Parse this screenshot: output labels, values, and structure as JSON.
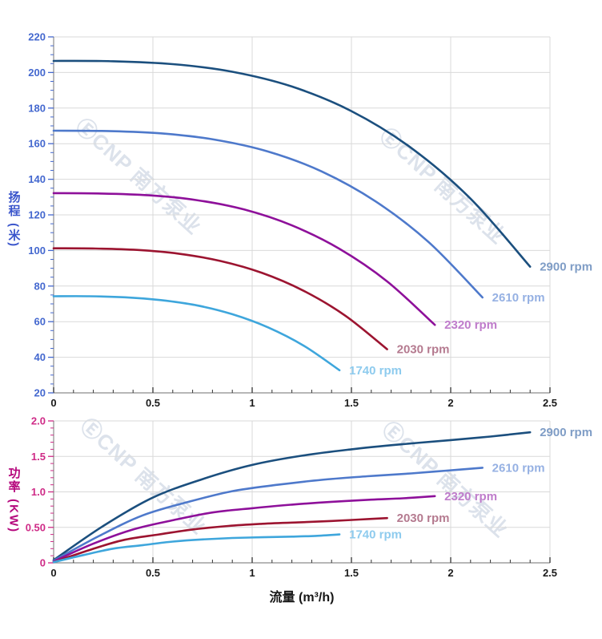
{
  "figure": {
    "watermark_text": "ⒺCNP 南方泵业",
    "background_color": "#ffffff",
    "grid_color": "#d9d9d9",
    "axis_line_color": "#8c8c8c",
    "x_tick_color": "#333333",
    "x_label_color": "#1a1a1a"
  },
  "chart_data": [
    {
      "id": "head-curve",
      "type": "line",
      "title": "",
      "xlabel": "",
      "ylabel": "扬程 (米)",
      "xlim": [
        0,
        2.5
      ],
      "ylim": [
        20,
        220
      ],
      "grid": true,
      "axis_color": "#4468cf",
      "title_color": "#3a55cb",
      "x_ticks": {
        "values": [
          0,
          0.5,
          1,
          1.5,
          2,
          2.5
        ],
        "labels": [
          "0",
          "0.5",
          "1",
          "1.5",
          "2",
          "2.5"
        ],
        "minor_step": 0.1
      },
      "y_ticks": {
        "values": [
          20,
          40,
          60,
          80,
          100,
          120,
          140,
          160,
          180,
          200,
          220
        ],
        "labels": [
          "20",
          "40",
          "60",
          "80",
          "100",
          "120",
          "140",
          "160",
          "180",
          "200",
          "220"
        ],
        "minor_step": 5
      },
      "series": [
        {
          "name": "2900 rpm",
          "color": "#1b4f7e",
          "label_color": "#7f9dc6",
          "points": [
            [
              0,
              206.5
            ],
            [
              0.3,
              206.3
            ],
            [
              0.6,
              204.7
            ],
            [
              0.9,
              200.4
            ],
            [
              1.2,
              192.1
            ],
            [
              1.5,
              178.3
            ],
            [
              1.8,
              157.7
            ],
            [
              2.1,
              129.1
            ],
            [
              2.4,
              90.9
            ]
          ]
        },
        {
          "name": "2610 rpm",
          "color": "#4e79cb",
          "label_color": "#96b1e3",
          "points": [
            [
              0,
              167.3
            ],
            [
              0.27,
              167.1
            ],
            [
              0.54,
              165.8
            ],
            [
              0.81,
              162.3
            ],
            [
              1.08,
              155.6
            ],
            [
              1.35,
              144.4
            ],
            [
              1.62,
              127.7
            ],
            [
              1.89,
              104.6
            ],
            [
              2.16,
              73.6
            ]
          ]
        },
        {
          "name": "2320 rpm",
          "color": "#8e109a",
          "label_color": "#bf7ccb",
          "points": [
            [
              0,
              132.2
            ],
            [
              0.24,
              132.0
            ],
            [
              0.48,
              131.0
            ],
            [
              0.72,
              128.3
            ],
            [
              0.96,
              123.0
            ],
            [
              1.2,
              114.1
            ],
            [
              1.44,
              100.9
            ],
            [
              1.68,
              82.6
            ],
            [
              1.92,
              58.2
            ]
          ]
        },
        {
          "name": "2030 rpm",
          "color": "#9c1430",
          "label_color": "#b57b90",
          "points": [
            [
              0,
              101.2
            ],
            [
              0.21,
              101.1
            ],
            [
              0.42,
              100.3
            ],
            [
              0.63,
              98.2
            ],
            [
              0.84,
              94.1
            ],
            [
              1.05,
              87.4
            ],
            [
              1.26,
              77.3
            ],
            [
              1.47,
              63.3
            ],
            [
              1.68,
              44.5
            ]
          ]
        },
        {
          "name": "1740 rpm",
          "color": "#3ea6dc",
          "label_color": "#8ecbee",
          "points": [
            [
              0,
              74.3
            ],
            [
              0.18,
              74.3
            ],
            [
              0.36,
              73.7
            ],
            [
              0.54,
              72.1
            ],
            [
              0.72,
              69.2
            ],
            [
              0.9,
              64.2
            ],
            [
              1.08,
              56.8
            ],
            [
              1.26,
              46.5
            ],
            [
              1.44,
              32.7
            ]
          ]
        }
      ]
    },
    {
      "id": "power-curve",
      "type": "line",
      "title": "",
      "xlabel": "流量 (m³/h)",
      "ylabel": "功率 (KW)",
      "xlim": [
        0,
        2.5
      ],
      "ylim": [
        0,
        2
      ],
      "grid": true,
      "axis_color": "#cf2b87",
      "title_color": "#b5067c",
      "x_ticks": {
        "values": [
          0,
          0.5,
          1,
          1.5,
          2,
          2.5
        ],
        "labels": [
          "0",
          "0.5",
          "1",
          "1.5",
          "2",
          "2.5"
        ],
        "minor_step": 0.1
      },
      "y_ticks": {
        "values": [
          0,
          0.5,
          1,
          1.5,
          2
        ],
        "labels": [
          "0",
          "0.50",
          "1.0",
          "1.5",
          "2.0"
        ],
        "minor_step": 0.1
      },
      "series": [
        {
          "name": "2900 rpm",
          "color": "#1b4f7e",
          "label_color": "#7f9dc6",
          "points": [
            [
              0,
              0.04
            ],
            [
              0.25,
              0.52
            ],
            [
              0.5,
              0.92
            ],
            [
              0.75,
              1.18
            ],
            [
              1.0,
              1.38
            ],
            [
              1.25,
              1.51
            ],
            [
              1.5,
              1.6
            ],
            [
              1.75,
              1.67
            ],
            [
              2.0,
              1.73
            ],
            [
              2.2,
              1.78
            ],
            [
              2.4,
              1.84
            ]
          ]
        },
        {
          "name": "2610 rpm",
          "color": "#4e79cb",
          "label_color": "#96b1e3",
          "points": [
            [
              0,
              0.03
            ],
            [
              0.23,
              0.38
            ],
            [
              0.45,
              0.67
            ],
            [
              0.68,
              0.86
            ],
            [
              0.9,
              1.01
            ],
            [
              1.13,
              1.1
            ],
            [
              1.35,
              1.17
            ],
            [
              1.58,
              1.22
            ],
            [
              1.8,
              1.26
            ],
            [
              1.98,
              1.3
            ],
            [
              2.16,
              1.34
            ]
          ]
        },
        {
          "name": "2320 rpm",
          "color": "#8e109a",
          "label_color": "#bf7ccb",
          "points": [
            [
              0,
              0.02
            ],
            [
              0.2,
              0.27
            ],
            [
              0.4,
              0.47
            ],
            [
              0.6,
              0.6
            ],
            [
              0.8,
              0.71
            ],
            [
              1.0,
              0.77
            ],
            [
              1.2,
              0.82
            ],
            [
              1.4,
              0.86
            ],
            [
              1.6,
              0.89
            ],
            [
              1.76,
              0.91
            ],
            [
              1.92,
              0.94
            ]
          ]
        },
        {
          "name": "2030 rpm",
          "color": "#9c1430",
          "label_color": "#b57b90",
          "points": [
            [
              0,
              0.01
            ],
            [
              0.18,
              0.18
            ],
            [
              0.35,
              0.32
            ],
            [
              0.53,
              0.4
            ],
            [
              0.7,
              0.47
            ],
            [
              0.88,
              0.52
            ],
            [
              1.05,
              0.55
            ],
            [
              1.23,
              0.57
            ],
            [
              1.4,
              0.59
            ],
            [
              1.54,
              0.61
            ],
            [
              1.68,
              0.63
            ]
          ]
        },
        {
          "name": "1740 rpm",
          "color": "#3ea6dc",
          "label_color": "#8ecbee",
          "points": [
            [
              0,
              0.01
            ],
            [
              0.15,
              0.11
            ],
            [
              0.3,
              0.2
            ],
            [
              0.45,
              0.25
            ],
            [
              0.6,
              0.3
            ],
            [
              0.75,
              0.33
            ],
            [
              0.9,
              0.35
            ],
            [
              1.05,
              0.36
            ],
            [
              1.2,
              0.37
            ],
            [
              1.32,
              0.38
            ],
            [
              1.44,
              0.4
            ]
          ]
        }
      ]
    }
  ]
}
